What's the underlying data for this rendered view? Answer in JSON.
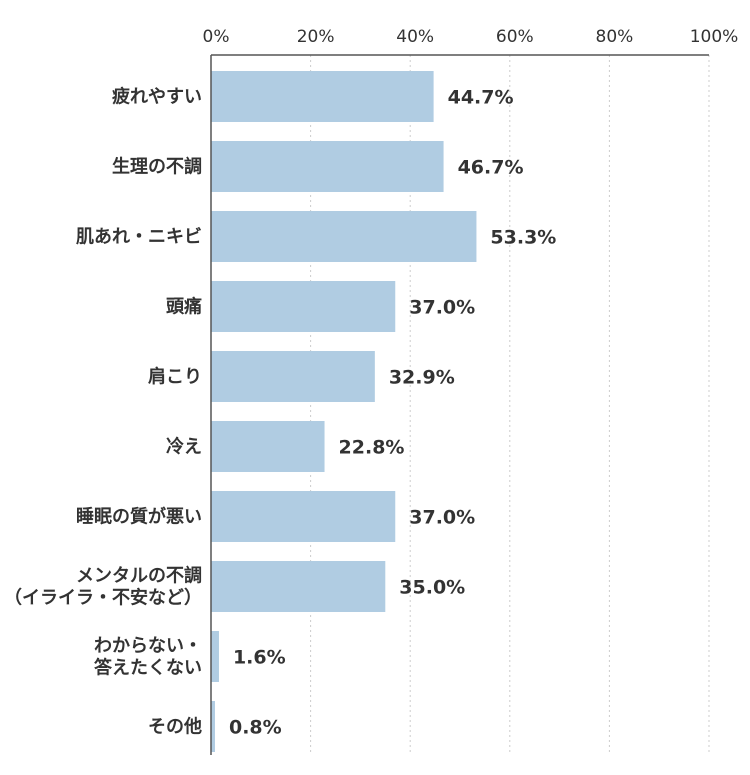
{
  "chart_data": {
    "type": "bar",
    "orientation": "horizontal",
    "title": "",
    "xlabel": "",
    "ylabel": "",
    "xlim": [
      0,
      100
    ],
    "ticks": [
      0,
      20,
      40,
      60,
      80,
      100
    ],
    "tick_labels": [
      "0%",
      "20%",
      "40%",
      "60%",
      "80%",
      "100%"
    ],
    "axis_position": "top",
    "grid": "vertical dotted",
    "bar_color": "#b0cce2",
    "categories": [
      [
        "疲れやすい"
      ],
      [
        "生理の不調"
      ],
      [
        "肌あれ・ニキビ"
      ],
      [
        "頭痛"
      ],
      [
        "肩こり"
      ],
      [
        "冷え"
      ],
      [
        "睡眠の質が悪い"
      ],
      [
        "メンタルの不調",
        "（イライラ・不安など）"
      ],
      [
        "わからない・",
        "答えたくない"
      ],
      [
        "その他"
      ]
    ],
    "values": [
      44.7,
      46.7,
      53.3,
      37.0,
      32.9,
      22.8,
      37.0,
      35.0,
      1.6,
      0.8
    ],
    "value_labels": [
      "44.7%",
      "46.7%",
      "53.3%",
      "37.0%",
      "32.9%",
      "22.8%",
      "37.0%",
      "35.0%",
      "1.6%",
      "0.8%"
    ]
  }
}
